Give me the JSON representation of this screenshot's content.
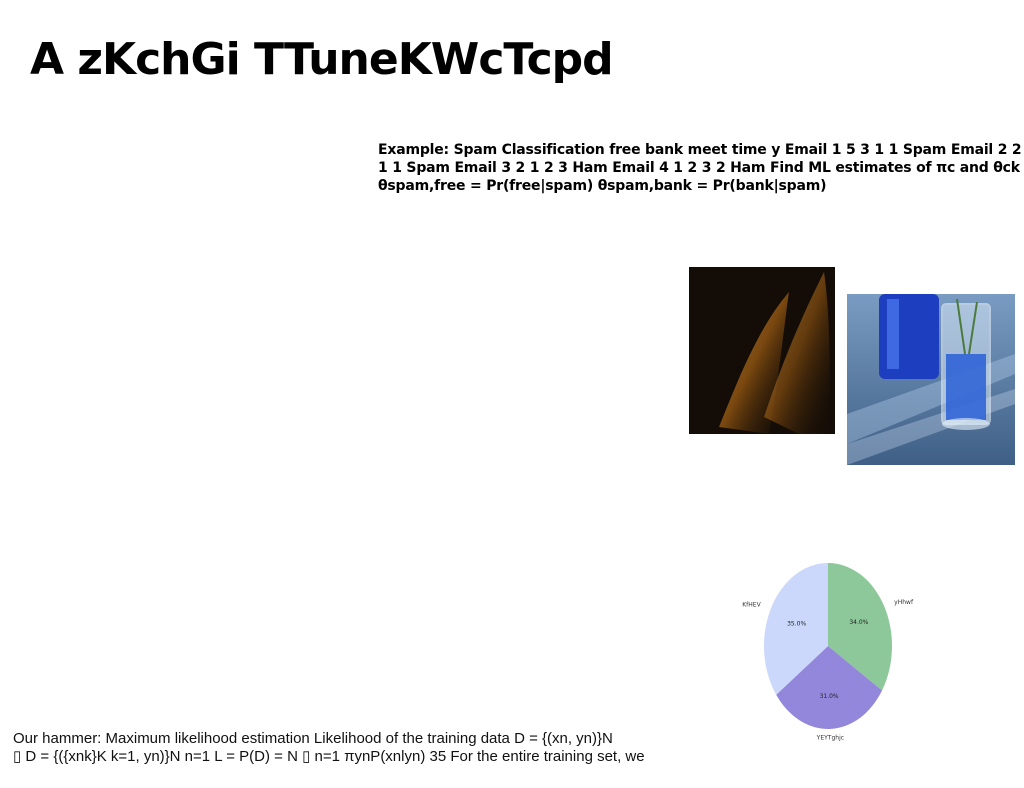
{
  "slide": {
    "title": "A zKchGi TTuneKWcTcpd",
    "example_text": "Example: Spam Classification free bank meet time y Email 1 5 3 1 1 Spam Email 2 2 1 1 Spam Email 3 2 1 2 3 Ham Email 4 1 2 3 2 Ham Find ML estimates of πc and θck θspam,free = Pr(free|spam) θspam,bank = Pr(bank|spam)",
    "footer_line1": "Our hammer: Maximum likelihood estimation Likelihood of the training data D = {(xn, yn)}N",
    "footer_line2": "▯ D = {({xnk}K k=1, yn)}N n=1 L = P(D) = N ▯ n=1 πynP(xnlyn) 35 For the entire training set, we"
  },
  "images": {
    "dark_abstract": "dark-amber-light-streak-photo",
    "blue_glass": "blue-glassware-on-table-photo"
  },
  "chart_data": {
    "type": "pie",
    "labels": [
      "yHhwf",
      "YEYTghjc",
      "KfHEV"
    ],
    "values": [
      34.0,
      31.0,
      35.0
    ],
    "value_labels": [
      "34.0%",
      "31.0%",
      "35.0%"
    ],
    "colors": [
      "#8dc89a",
      "#9387db",
      "#ccd8fb"
    ],
    "start_angle_deg": 90,
    "direction": "clockwise"
  }
}
